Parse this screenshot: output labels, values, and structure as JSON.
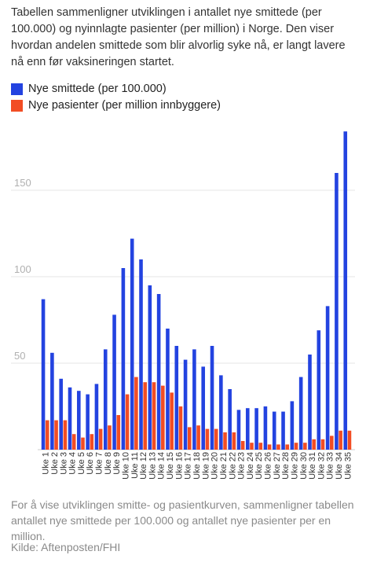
{
  "intro": "Tabellen sammenligner utviklingen i antallet nye smittede (per 100.000) og nyinnlagte pasienter (per million) i Norge. Den viser hvordan andelen smittede som blir alvorlig syke nå, er langt lavere nå enn før vaksineringen startet.",
  "footnote": "For å vise utviklingen smitte- og pasientkurven, sammenligner tabellen antallet nye smittede per 100.000 og antallet nye pasienter per en million.",
  "source": "Kilde: Aftenposten/FHI",
  "colors": {
    "series1": "#2343e0",
    "series2": "#f24d24",
    "grid": "#e5e5e5",
    "tick": "#b0b0b0"
  },
  "chart_data": {
    "type": "bar",
    "categories": [
      "Uke 1",
      "Uke 2",
      "Uke 3",
      "Uke 4",
      "Uke 5",
      "Uke 6",
      "Uke 7",
      "Uke 8",
      "Uke 9",
      "Uke 10",
      "Uke 11",
      "Uke 12",
      "Uke 13",
      "Uke 14",
      "Uke 15",
      "Uke 16",
      "Uke 17",
      "Uke 18",
      "Uke 19",
      "Uke 20",
      "Uke 21",
      "Uke 22",
      "Uke 23",
      "Uke 24",
      "Uke 25",
      "Uke 26",
      "Uke 27",
      "Uke 28",
      "Uke 29",
      "Uke 30",
      "Uke 31",
      "Uke 32",
      "Uke 33",
      "Uke 34",
      "Uke 35"
    ],
    "series": [
      {
        "name": "Nye smittede (per 100.000)",
        "values": [
          87,
          56,
          41,
          36,
          34,
          32,
          38,
          58,
          78,
          105,
          122,
          110,
          95,
          90,
          70,
          60,
          52,
          58,
          48,
          60,
          43,
          35,
          23,
          24,
          24,
          25,
          22,
          22,
          28,
          42,
          55,
          69,
          83,
          160,
          184
        ]
      },
      {
        "name": "Nye pasienter (per million innbyggere)",
        "values": [
          17,
          17,
          17,
          9,
          7,
          9,
          12,
          14,
          20,
          32,
          42,
          39,
          39,
          37,
          33,
          25,
          13,
          14,
          12,
          12,
          10,
          10,
          5,
          4,
          4,
          3,
          3,
          3,
          4,
          4,
          6,
          6,
          8,
          11,
          11
        ]
      }
    ],
    "y_ticks": [
      50,
      100,
      150
    ],
    "ylim": [
      0,
      185
    ],
    "grid": true,
    "legend": "top-left"
  }
}
